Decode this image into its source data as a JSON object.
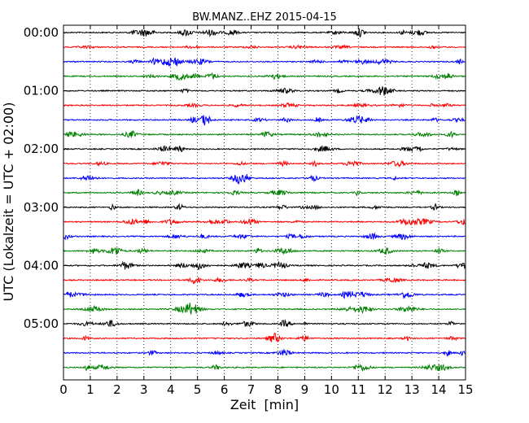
{
  "chart_data": {
    "type": "line",
    "title": "BW.MANZ..EHZ 2015-04-15",
    "xlabel": "Zeit  [min]",
    "ylabel": "UTC (Lokalzeit = UTC + 02:00)",
    "xlim": [
      0,
      15
    ],
    "x_ticks": [
      "0",
      "1",
      "2",
      "3",
      "4",
      "5",
      "6",
      "7",
      "8",
      "9",
      "10",
      "11",
      "12",
      "13",
      "14",
      "15"
    ],
    "y_ticks": [
      "00:00",
      "01:00",
      "02:00",
      "03:00",
      "04:00",
      "05:00"
    ],
    "trace_interval_min": 15,
    "trace_count": 24,
    "trace_colors": [
      "#000000",
      "#ff0000",
      "#0000ff",
      "#008000"
    ],
    "vertical_grid": "dotted at every minute",
    "legend": "none"
  }
}
